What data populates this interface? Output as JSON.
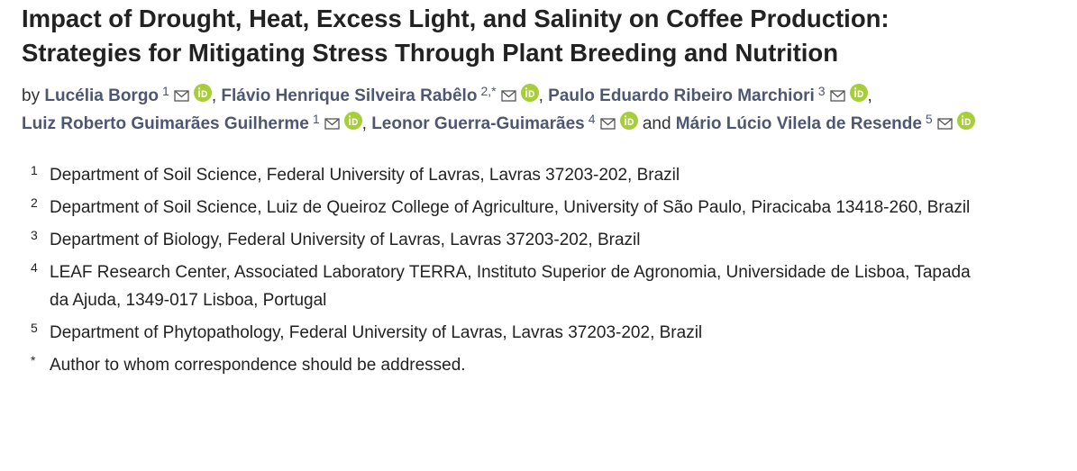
{
  "title": "Impact of Drought, Heat, Excess Light, and Salinity on Coffee Production: Strategies for Mitigating Stress Through Plant Breeding and Nutrition",
  "authors_prefix": "by",
  "separator": ",",
  "conjunction": "and",
  "authors": [
    {
      "name": "Lucélia Borgo",
      "sup": "1"
    },
    {
      "name": "Flávio Henrique Silveira Rabêlo",
      "sup": "2,*"
    },
    {
      "name": "Paulo Eduardo Ribeiro Marchiori",
      "sup": "3"
    },
    {
      "name": "Luiz Roberto Guimarães Guilherme",
      "sup": "1"
    },
    {
      "name": "Leonor Guerra-Guimarães",
      "sup": "4"
    },
    {
      "name": "Mário Lúcio Vilela de Resende",
      "sup": "5"
    }
  ],
  "affiliations": [
    {
      "marker": "1",
      "text": "Department of Soil Science, Federal University of Lavras, Lavras 37203-202, Brazil"
    },
    {
      "marker": "2",
      "text": "Department of Soil Science, Luiz de Queiroz College of Agriculture, University of São Paulo, Piracicaba 13418-260, Brazil"
    },
    {
      "marker": "3",
      "text": "Department of Biology, Federal University of Lavras, Lavras 37203-202, Brazil"
    },
    {
      "marker": "4",
      "text": "LEAF Research Center, Associated Laboratory TERRA, Instituto Superior de Agronomia, Universidade de Lisboa, Tapada da Ajuda, 1349-017 Lisboa, Portugal"
    },
    {
      "marker": "5",
      "text": "Department of Phytopathology, Federal University of Lavras, Lavras 37203-202, Brazil"
    },
    {
      "marker": "*",
      "text": "Author to whom correspondence should be addressed."
    }
  ]
}
